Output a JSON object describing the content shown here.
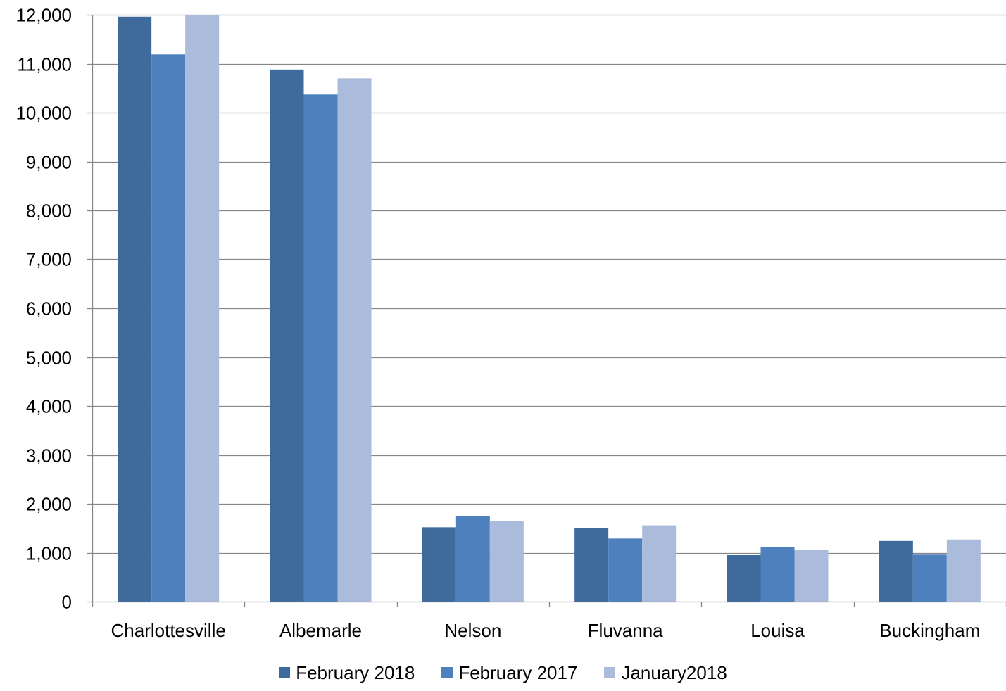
{
  "chart_data": {
    "type": "bar",
    "title": "",
    "xlabel": "",
    "ylabel": "",
    "categories": [
      "Charlottesville",
      "Albemarle",
      "Nelson",
      "Fluvanna",
      "Louisa",
      "Buckingham"
    ],
    "series": [
      {
        "name": "February 2018",
        "color": "#3f6a9c",
        "values": [
          11960,
          10880,
          1520,
          1510,
          950,
          1240
        ]
      },
      {
        "name": "February 2017",
        "color": "#4e80be",
        "values": [
          11190,
          10370,
          1750,
          1290,
          1120,
          960
        ]
      },
      {
        "name": "January2018",
        "color": "#abbbdb",
        "values": [
          12000,
          10700,
          1640,
          1560,
          1060,
          1270
        ]
      }
    ],
    "ylim": [
      0,
      12000
    ],
    "yticks": [
      0,
      1000,
      2000,
      3000,
      4000,
      5000,
      6000,
      7000,
      8000,
      9000,
      10000,
      11000,
      12000
    ],
    "ytick_labels": [
      "0",
      "1,000",
      "2,000",
      "3,000",
      "4,000",
      "5,000",
      "6,000",
      "7,000",
      "8,000",
      "9,000",
      "10,000",
      "11,000",
      "12,000"
    ],
    "grid": true,
    "legend_position": "bottom-center"
  }
}
